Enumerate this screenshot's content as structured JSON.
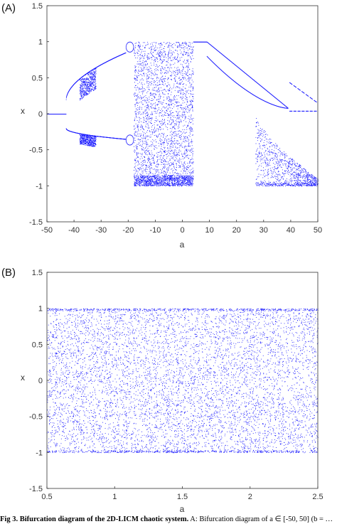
{
  "caption": {
    "bold": "Fig 3. Bifurcation diagram of the 2D-LICM chaotic system.",
    "rest": " A: Bifurcation diagram of a ∈ [-50, 50] (b = …"
  },
  "chart_data": [
    {
      "type": "scatter",
      "panel_label": "(A)",
      "title": "",
      "xlabel": "a",
      "ylabel": "x",
      "xlim": [
        -50,
        50
      ],
      "ylim": [
        -1.5,
        1.5
      ],
      "xticks": [
        "-50",
        "-40",
        "-30",
        "-20",
        "-10",
        "0",
        "10",
        "20",
        "30",
        "40",
        "50"
      ],
      "yticks": [
        "-1.5",
        "-1",
        "-0.5",
        "0",
        "0.5",
        "1",
        "1.5"
      ],
      "grid": false,
      "color": "#1a1aff",
      "series": [
        {
          "region": "fixed point",
          "a_range": [
            -50,
            -43
          ],
          "x": 0
        },
        {
          "region": "upper branch",
          "a_range": [
            -43,
            -21
          ],
          "x_from": 0.2,
          "x_to": 0.85
        },
        {
          "region": "lower branch",
          "a_range": [
            -43,
            -21
          ],
          "x_from": -0.2,
          "x_to": -0.35
        },
        {
          "region": "chaotic band",
          "a_range": [
            -18,
            4
          ],
          "x_range": [
            -1,
            1
          ]
        },
        {
          "region": "saturated",
          "a_range": [
            4,
            9
          ],
          "x": 1
        },
        {
          "region": "outer decay",
          "a_range": [
            9,
            39
          ],
          "x_from": 1,
          "x_to": 0.08
        },
        {
          "region": "inner decay",
          "a_range": [
            9,
            39
          ],
          "x_from": 0.8,
          "x_to": 0.08
        },
        {
          "region": "right periodic windows",
          "a_range": [
            27,
            50
          ],
          "x_range": [
            -1,
            0
          ]
        }
      ]
    },
    {
      "type": "scatter",
      "panel_label": "(B)",
      "title": "",
      "xlabel": "a",
      "ylabel": "x",
      "xlim": [
        0.5,
        2.5
      ],
      "ylim": [
        -1.5,
        1.5
      ],
      "xticks": [
        "0.5",
        "1",
        "1.5",
        "2",
        "2.5"
      ],
      "yticks": [
        "-1.5",
        "-1",
        "-0.5",
        "0",
        "0.5",
        "1",
        "1.5"
      ],
      "grid": false,
      "color": "#1a1aff",
      "series": [
        {
          "region": "chaotic band",
          "a_range": [
            0.5,
            2.5
          ],
          "x_range": [
            -1,
            1
          ]
        }
      ]
    }
  ]
}
